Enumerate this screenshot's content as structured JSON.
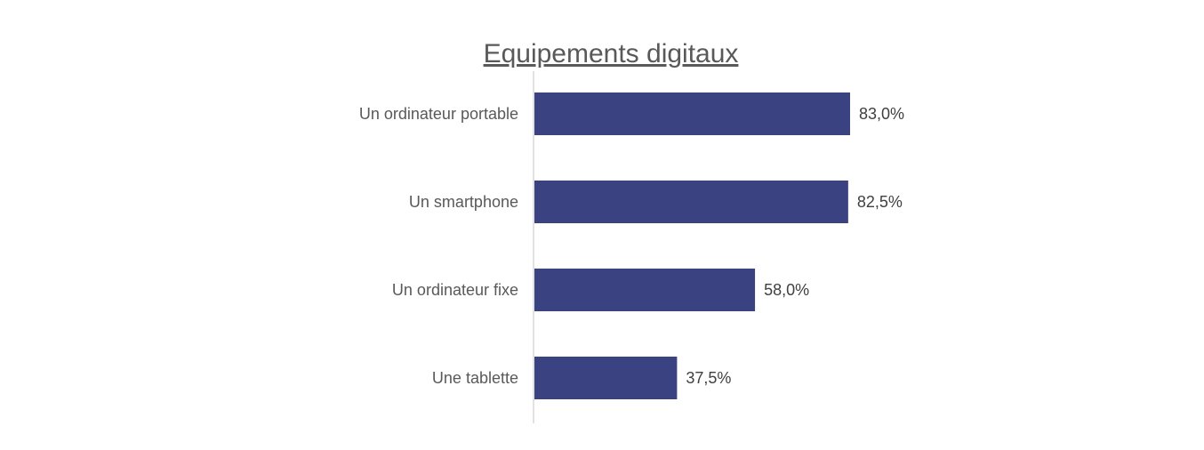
{
  "chart_data": {
    "type": "bar",
    "orientation": "horizontal",
    "title": "Equipements digitaux",
    "categories": [
      "Un ordinateur portable",
      "Un smartphone",
      "Un ordinateur fixe",
      "Une tablette"
    ],
    "values": [
      83.0,
      82.5,
      58.0,
      37.5
    ],
    "value_labels": [
      "83,0%",
      "82,5%",
      "58,0%",
      "37,5%"
    ],
    "xlim": [
      0,
      100
    ],
    "bar_color": "#3b4282",
    "axis_color": "#d9d9d9",
    "grid": false,
    "legend": "none"
  }
}
